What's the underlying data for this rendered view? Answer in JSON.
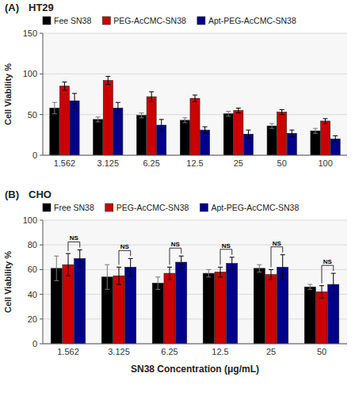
{
  "chart_data": [
    {
      "type": "bar",
      "title": "HT29",
      "label": "(A)",
      "y_label": "Cell Viability %",
      "categories": [
        "1.562",
        "3.125",
        "6.25",
        "12.5",
        "25",
        "50",
        "100"
      ],
      "series": [
        {
          "name": "Fee SN38",
          "color": "#000000",
          "values": [
            58,
            44,
            49,
            43,
            51,
            36,
            30
          ],
          "errors": [
            7,
            3,
            3,
            3,
            3,
            3,
            3
          ]
        },
        {
          "name": "PEG-AcCMC-SN38",
          "color": "#cc0000",
          "values": [
            85,
            92,
            72,
            70,
            55,
            53,
            42
          ],
          "errors": [
            5,
            5,
            6,
            4,
            3,
            3,
            3
          ]
        },
        {
          "name": "Apt-PEG-AcCMC-SN38",
          "color": "#00008B",
          "values": [
            67,
            58,
            37,
            31,
            26,
            27,
            20
          ],
          "errors": [
            9,
            7,
            7,
            4,
            5,
            4,
            4
          ]
        }
      ],
      "ylim": [
        0,
        150
      ],
      "yticks": [
        0,
        50,
        100,
        150
      ],
      "grid": true,
      "legend": "top"
    },
    {
      "type": "bar",
      "title": "CHO",
      "label": "(B)",
      "x_label": "SN38 Concentration (μg/mL)",
      "y_label": "Cell Viability %",
      "categories": [
        "1.562",
        "3.125",
        "6.25",
        "12.5",
        "25",
        "50"
      ],
      "series": [
        {
          "name": "Free SN38",
          "color": "#000000",
          "values": [
            61,
            54,
            49,
            57,
            61,
            46
          ],
          "errors": [
            10,
            10,
            5,
            3,
            3,
            2
          ]
        },
        {
          "name": "PEG-AcCMC-SN38",
          "color": "#cc0000",
          "values": [
            64,
            55,
            57,
            58,
            56,
            42
          ],
          "errors": [
            9,
            7,
            5,
            4,
            4,
            5
          ]
        },
        {
          "name": "Apt-PEG-AcCMC-SN38",
          "color": "#00008B",
          "values": [
            69,
            62,
            66,
            65,
            62,
            48
          ],
          "errors": [
            7,
            7,
            5,
            5,
            10,
            9
          ]
        }
      ],
      "annotations": [
        {
          "text": "NS",
          "category": "1.562",
          "between": [
            "PEG-AcCMC-SN38",
            "Apt-PEG-AcCMC-SN38"
          ]
        },
        {
          "text": "NS",
          "category": "3.125",
          "between": [
            "PEG-AcCMC-SN38",
            "Apt-PEG-AcCMC-SN38"
          ]
        },
        {
          "text": "NS",
          "category": "6.25",
          "between": [
            "PEG-AcCMC-SN38",
            "Apt-PEG-AcCMC-SN38"
          ]
        },
        {
          "text": "NS",
          "category": "12.5",
          "between": [
            "PEG-AcCMC-SN38",
            "Apt-PEG-AcCMC-SN38"
          ]
        },
        {
          "text": "NS",
          "category": "25",
          "between": [
            "PEG-AcCMC-SN38",
            "Apt-PEG-AcCMC-SN38"
          ]
        },
        {
          "text": "NS",
          "category": "50",
          "between": [
            "PEG-AcCMC-SN38",
            "Apt-PEG-AcCMC-SN38"
          ]
        }
      ],
      "ylim": [
        0,
        100
      ],
      "yticks": [
        0,
        20,
        40,
        60,
        80,
        100
      ],
      "grid": true,
      "legend": "top"
    }
  ]
}
